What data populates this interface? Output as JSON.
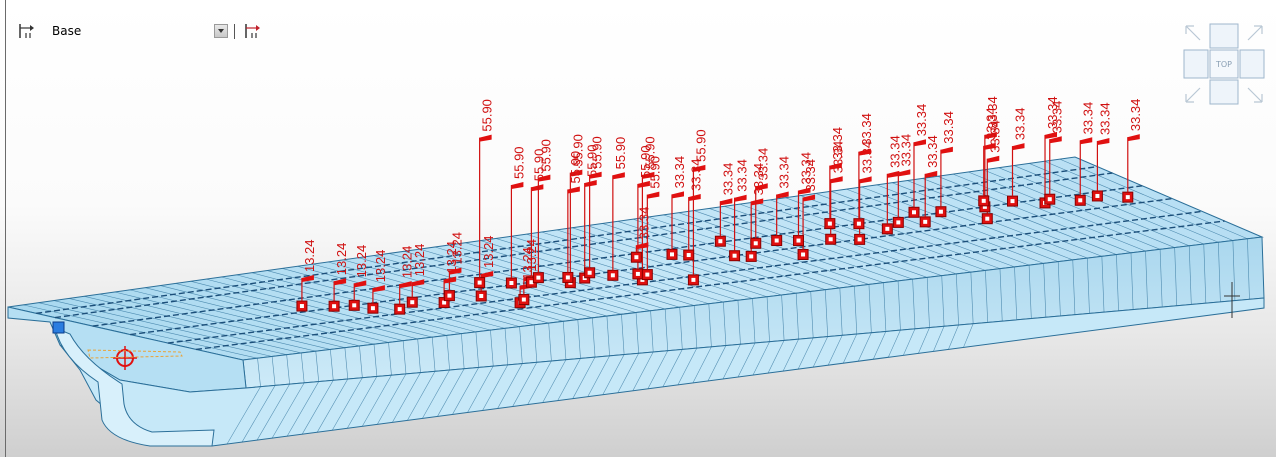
{
  "toolbar": {
    "layer_name": "Base",
    "layer_icon": "layer-tree-icon",
    "dropdown_icon": "chevron-down-icon",
    "edit_icon": "layer-edit-icon"
  },
  "view_cube": {
    "face_label": "TOP"
  },
  "colors": {
    "girder_fill": "#bfe3f5",
    "girder_edge": "#2b6f99",
    "load_marker": "#e01010",
    "load_label": "#d01010"
  },
  "loads": [
    {
      "label": "13.24"
    },
    {
      "label": "13.24"
    },
    {
      "label": "13.24"
    },
    {
      "label": "13.24"
    },
    {
      "label": "13.24"
    },
    {
      "label": "13.24"
    },
    {
      "label": "13.24"
    },
    {
      "label": "13.24"
    },
    {
      "label": "13.24"
    },
    {
      "label": "13.24"
    },
    {
      "label": "13.24"
    },
    {
      "label": "55.90"
    },
    {
      "label": "55.90"
    },
    {
      "label": "55.90"
    },
    {
      "label": "55.90"
    },
    {
      "label": "55.90"
    },
    {
      "label": "55.90"
    },
    {
      "label": "55.90"
    },
    {
      "label": "55.90"
    },
    {
      "label": "55.90"
    },
    {
      "label": "55.90"
    },
    {
      "label": "55.90"
    },
    {
      "label": "55.90"
    },
    {
      "label": "55.90"
    },
    {
      "label": "33.34"
    },
    {
      "label": "33.34"
    },
    {
      "label": "33.34"
    },
    {
      "label": "33.34"
    },
    {
      "label": "33.34"
    },
    {
      "label": "33.34"
    },
    {
      "label": "33.34"
    },
    {
      "label": "33.34"
    },
    {
      "label": "33.34"
    },
    {
      "label": "33.34"
    },
    {
      "label": "33.34"
    },
    {
      "label": "33.34"
    },
    {
      "label": "33.34"
    },
    {
      "label": "33.34"
    },
    {
      "label": "33.34"
    },
    {
      "label": "33.34"
    },
    {
      "label": "33.34"
    },
    {
      "label": "33.34"
    },
    {
      "label": "33.34"
    },
    {
      "label": "33.34"
    },
    {
      "label": "33.34"
    },
    {
      "label": "33.34"
    },
    {
      "label": "33.34"
    },
    {
      "label": "33.34"
    },
    {
      "label": "33.34"
    },
    {
      "label": "33.34"
    },
    {
      "label": "33.34"
    },
    {
      "label": "33.34"
    }
  ]
}
